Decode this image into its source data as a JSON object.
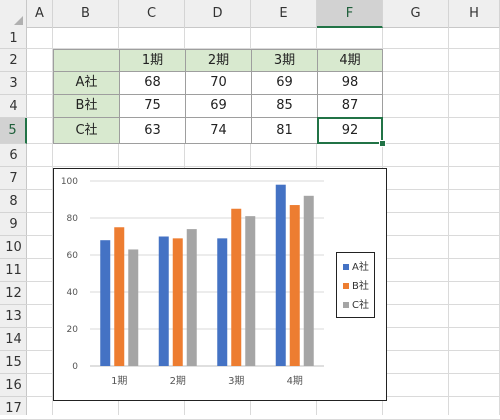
{
  "columns": [
    "A",
    "B",
    "C",
    "D",
    "E",
    "F",
    "G",
    "H"
  ],
  "rows": [
    "1",
    "2",
    "3",
    "4",
    "5",
    "6",
    "7",
    "8",
    "9",
    "10",
    "11",
    "12",
    "13",
    "14",
    "15",
    "16",
    "17"
  ],
  "table": {
    "header": [
      "1期",
      "2期",
      "3期",
      "4期"
    ],
    "rows": [
      {
        "label": "A社",
        "values": [
          "68",
          "70",
          "69",
          "98"
        ]
      },
      {
        "label": "B社",
        "values": [
          "75",
          "69",
          "85",
          "87"
        ]
      },
      {
        "label": "C社",
        "values": [
          "63",
          "74",
          "81",
          "92"
        ]
      }
    ]
  },
  "selection": {
    "column": "F",
    "row": "5"
  },
  "colors": {
    "header_fill": "#d8e9cf",
    "accent": "#217346"
  },
  "chart_data": {
    "type": "bar",
    "categories": [
      "1期",
      "2期",
      "3期",
      "4期"
    ],
    "series": [
      {
        "name": "A社",
        "values": [
          68,
          70,
          69,
          98
        ],
        "color": "#4472c4"
      },
      {
        "name": "B社",
        "values": [
          75,
          69,
          85,
          87
        ],
        "color": "#ed7d31"
      },
      {
        "name": "C社",
        "values": [
          63,
          74,
          81,
          92
        ],
        "color": "#a5a5a5"
      }
    ],
    "yticks": [
      "0",
      "20",
      "40",
      "60",
      "80",
      "100"
    ],
    "ylim": [
      0,
      100
    ],
    "grid": true,
    "legend_position": "right"
  }
}
